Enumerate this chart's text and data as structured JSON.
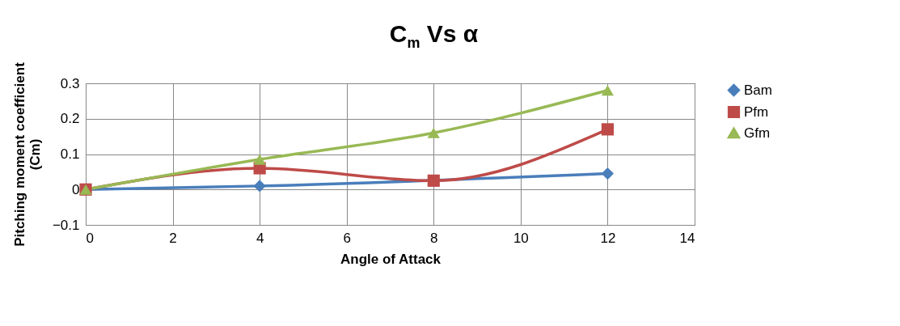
{
  "chart_data": {
    "type": "line",
    "title": "C$_{m}$ Vs α",
    "xlabel": "Angle of Attack",
    "ylabel": "Pitching moment coefficient\n(Cm)",
    "x": [
      0,
      4,
      8,
      12
    ],
    "series": [
      {
        "name": "Bam",
        "color": "#4a7ebb",
        "values": [
          0,
          0.01,
          null,
          0.045
        ],
        "marker": "diamond"
      },
      {
        "name": "Pfm",
        "color": "#be4b48",
        "values": [
          0,
          0.06,
          0.025,
          0.17
        ],
        "marker": "square"
      },
      {
        "name": "Gfm",
        "color": "#98b954",
        "values": [
          0,
          0.085,
          0.16,
          0.28
        ],
        "marker": "triangle"
      }
    ],
    "xlim": [
      0,
      14
    ],
    "xticks": [
      0,
      2,
      4,
      6,
      8,
      10,
      12,
      14
    ],
    "ylim": [
      -0.1,
      0.3
    ],
    "yticks": [
      -0.1,
      0,
      0.1,
      0.2,
      0.3
    ],
    "grid": true,
    "legend": "right",
    "line_style": "solid"
  }
}
